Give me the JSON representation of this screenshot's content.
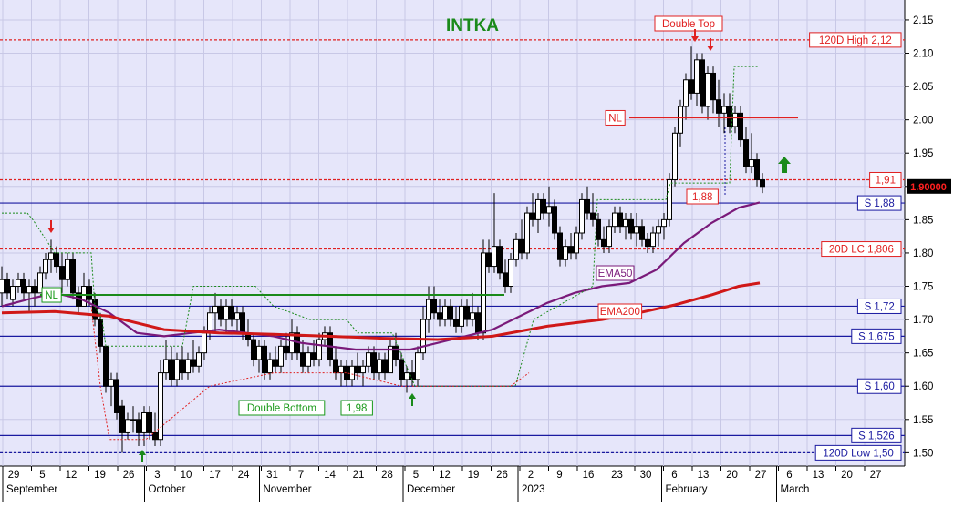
{
  "chart_data": {
    "type": "candlestick",
    "title": "INTKA",
    "currency_note": "",
    "y_axis": {
      "ylim": [
        1.48,
        2.18
      ],
      "ticks": [
        1.5,
        1.55,
        1.6,
        1.65,
        1.7,
        1.75,
        1.8,
        1.85,
        1.9,
        1.95,
        2.0,
        2.05,
        2.1,
        2.15
      ],
      "tick_labels": [
        "1.50",
        "1.55",
        "1.60",
        "1.65",
        "1.70",
        "1.75",
        "1.80",
        "1.85",
        "1.90",
        "1.95",
        "2.00",
        "2.05",
        "2.10",
        "2.15"
      ],
      "current_price": 1.9,
      "current_price_label": "1.90000"
    },
    "x_axis": {
      "day_ticks": [
        "29",
        "5",
        "12",
        "19",
        "26",
        "3",
        "10",
        "17",
        "24",
        "31",
        "7",
        "14",
        "21",
        "28",
        "5",
        "12",
        "19",
        "26",
        "2",
        "9",
        "16",
        "23",
        "30",
        "6",
        "13",
        "20",
        "27",
        "6",
        "13",
        "20",
        "27"
      ],
      "month_labels": [
        "September",
        "October",
        "November",
        "December",
        "2023",
        "February",
        "March"
      ]
    },
    "horizontal_lines": [
      {
        "label": "120D High 2,12",
        "value": 2.12,
        "style": "dashed",
        "color": "#e02020"
      },
      {
        "label": "1,91",
        "value": 1.91,
        "style": "dashed",
        "color": "#e02020"
      },
      {
        "label": "S 1,88",
        "value": 1.875,
        "style": "solid",
        "color": "#1a1aa0"
      },
      {
        "label": "20D LC 1,806",
        "value": 1.806,
        "style": "dashed",
        "color": "#e02020"
      },
      {
        "label": "S 1,72",
        "value": 1.72,
        "style": "solid",
        "color": "#1a1aa0"
      },
      {
        "label": "S 1,675",
        "value": 1.675,
        "style": "solid",
        "color": "#1a1aa0"
      },
      {
        "label": "S 1,60",
        "value": 1.6,
        "style": "solid",
        "color": "#1a1aa0"
      },
      {
        "label": "S 1,526",
        "value": 1.526,
        "style": "solid",
        "color": "#1a1aa0"
      },
      {
        "label": "120D Low 1,50",
        "value": 1.5,
        "style": "dashed",
        "color": "#1a1aa0"
      }
    ],
    "annotations": [
      {
        "label": "Double Top",
        "color": "#e02020"
      },
      {
        "label": "NL",
        "color": "#e02020",
        "value": 2.003
      },
      {
        "label": "NL",
        "color": "#1a9a1a",
        "value": 1.737
      },
      {
        "label": "Double Bottom",
        "color": "#1a9a1a"
      },
      {
        "label": "1,98",
        "color": "#1a9a1a"
      },
      {
        "label": "1,88",
        "color": "#e02020"
      },
      {
        "label": "EMA50",
        "color": "#7a1a7a"
      },
      {
        "label": "EMA200",
        "color": "#e02020"
      }
    ],
    "series": [
      {
        "name": "EMA50",
        "color": "#7a1a7a",
        "x": [
          2,
          30,
          60,
          90,
          120,
          150,
          180,
          210,
          240,
          270,
          300,
          330,
          360,
          390,
          420,
          450,
          480,
          510,
          540,
          570,
          600,
          630,
          660,
          690,
          720,
          750,
          780,
          810,
          833
        ],
        "values": [
          1.72,
          1.73,
          1.74,
          1.73,
          1.71,
          1.68,
          1.675,
          1.68,
          1.685,
          1.68,
          1.675,
          1.665,
          1.66,
          1.655,
          1.655,
          1.655,
          1.665,
          1.675,
          1.685,
          1.705,
          1.725,
          1.74,
          1.75,
          1.755,
          1.775,
          1.815,
          1.845,
          1.868,
          1.876
        ]
      },
      {
        "name": "EMA200",
        "color": "#d01818",
        "x": [
          2,
          60,
          120,
          180,
          240,
          300,
          360,
          420,
          480,
          540,
          600,
          660,
          700,
          740,
          780,
          810,
          833
        ],
        "values": [
          1.71,
          1.712,
          1.705,
          1.685,
          1.68,
          1.678,
          1.675,
          1.672,
          1.67,
          1.675,
          1.69,
          1.7,
          1.71,
          1.722,
          1.737,
          1.75,
          1.755
        ]
      }
    ],
    "candles": [
      [
        2,
        1.74,
        1.78,
        1.72,
        1.76
      ],
      [
        8,
        1.76,
        1.77,
        1.73,
        1.74
      ],
      [
        14,
        1.73,
        1.76,
        1.72,
        1.75
      ],
      [
        20,
        1.75,
        1.77,
        1.74,
        1.76
      ],
      [
        26,
        1.76,
        1.77,
        1.73,
        1.74
      ],
      [
        32,
        1.74,
        1.76,
        1.71,
        1.75
      ],
      [
        38,
        1.75,
        1.76,
        1.72,
        1.74
      ],
      [
        44,
        1.74,
        1.78,
        1.74,
        1.77
      ],
      [
        50,
        1.77,
        1.8,
        1.76,
        1.79
      ],
      [
        56,
        1.79,
        1.82,
        1.77,
        1.8
      ],
      [
        62,
        1.8,
        1.81,
        1.77,
        1.78
      ],
      [
        68,
        1.78,
        1.8,
        1.74,
        1.76
      ],
      [
        74,
        1.76,
        1.8,
        1.75,
        1.79
      ],
      [
        80,
        1.79,
        1.8,
        1.73,
        1.74
      ],
      [
        86,
        1.74,
        1.75,
        1.71,
        1.72
      ],
      [
        92,
        1.72,
        1.77,
        1.72,
        1.75
      ],
      [
        98,
        1.75,
        1.76,
        1.72,
        1.73
      ],
      [
        104,
        1.73,
        1.74,
        1.69,
        1.7
      ],
      [
        110,
        1.7,
        1.71,
        1.65,
        1.66
      ],
      [
        116,
        1.66,
        1.66,
        1.59,
        1.6
      ],
      [
        122,
        1.6,
        1.62,
        1.57,
        1.61
      ],
      [
        128,
        1.61,
        1.62,
        1.55,
        1.56
      ],
      [
        134,
        1.57,
        1.58,
        1.5,
        1.53
      ],
      [
        140,
        1.53,
        1.56,
        1.52,
        1.55
      ],
      [
        146,
        1.55,
        1.57,
        1.53,
        1.55
      ],
      [
        152,
        1.55,
        1.56,
        1.51,
        1.53
      ],
      [
        158,
        1.53,
        1.57,
        1.51,
        1.56
      ],
      [
        164,
        1.56,
        1.57,
        1.52,
        1.53
      ],
      [
        170,
        1.53,
        1.56,
        1.51,
        1.52
      ],
      [
        176,
        1.52,
        1.64,
        1.51,
        1.62
      ],
      [
        182,
        1.62,
        1.67,
        1.61,
        1.64
      ],
      [
        188,
        1.64,
        1.66,
        1.6,
        1.61
      ],
      [
        194,
        1.61,
        1.65,
        1.6,
        1.64
      ],
      [
        200,
        1.64,
        1.66,
        1.61,
        1.62
      ],
      [
        206,
        1.62,
        1.65,
        1.61,
        1.64
      ],
      [
        212,
        1.64,
        1.67,
        1.62,
        1.63
      ],
      [
        218,
        1.63,
        1.66,
        1.62,
        1.65
      ],
      [
        224,
        1.65,
        1.69,
        1.64,
        1.68
      ],
      [
        230,
        1.68,
        1.72,
        1.67,
        1.71
      ],
      [
        236,
        1.71,
        1.74,
        1.68,
        1.72
      ],
      [
        242,
        1.72,
        1.73,
        1.69,
        1.7
      ],
      [
        248,
        1.7,
        1.73,
        1.68,
        1.72
      ],
      [
        254,
        1.72,
        1.73,
        1.69,
        1.7
      ],
      [
        260,
        1.7,
        1.72,
        1.68,
        1.71
      ],
      [
        266,
        1.71,
        1.72,
        1.67,
        1.68
      ],
      [
        272,
        1.68,
        1.7,
        1.66,
        1.67
      ],
      [
        278,
        1.67,
        1.68,
        1.63,
        1.64
      ],
      [
        284,
        1.64,
        1.67,
        1.62,
        1.66
      ],
      [
        290,
        1.66,
        1.67,
        1.61,
        1.62
      ],
      [
        296,
        1.62,
        1.65,
        1.61,
        1.64
      ],
      [
        302,
        1.64,
        1.66,
        1.62,
        1.63
      ],
      [
        308,
        1.63,
        1.67,
        1.62,
        1.66
      ],
      [
        314,
        1.66,
        1.68,
        1.64,
        1.65
      ],
      [
        320,
        1.65,
        1.7,
        1.64,
        1.68
      ],
      [
        326,
        1.68,
        1.69,
        1.64,
        1.65
      ],
      [
        332,
        1.65,
        1.67,
        1.62,
        1.63
      ],
      [
        338,
        1.63,
        1.66,
        1.62,
        1.65
      ],
      [
        344,
        1.65,
        1.67,
        1.63,
        1.64
      ],
      [
        350,
        1.64,
        1.68,
        1.63,
        1.67
      ],
      [
        356,
        1.67,
        1.69,
        1.66,
        1.68
      ],
      [
        362,
        1.68,
        1.69,
        1.63,
        1.64
      ],
      [
        368,
        1.64,
        1.66,
        1.61,
        1.62
      ],
      [
        374,
        1.62,
        1.64,
        1.6,
        1.63
      ],
      [
        380,
        1.63,
        1.64,
        1.6,
        1.61
      ],
      [
        386,
        1.61,
        1.64,
        1.6,
        1.63
      ],
      [
        392,
        1.63,
        1.65,
        1.61,
        1.62
      ],
      [
        398,
        1.62,
        1.64,
        1.6,
        1.63
      ],
      [
        404,
        1.63,
        1.66,
        1.62,
        1.65
      ],
      [
        410,
        1.65,
        1.66,
        1.61,
        1.62
      ],
      [
        416,
        1.62,
        1.65,
        1.61,
        1.64
      ],
      [
        422,
        1.64,
        1.65,
        1.61,
        1.62
      ],
      [
        428,
        1.62,
        1.67,
        1.62,
        1.66
      ],
      [
        434,
        1.66,
        1.68,
        1.63,
        1.64
      ],
      [
        440,
        1.64,
        1.65,
        1.6,
        1.61
      ],
      [
        446,
        1.61,
        1.63,
        1.59,
        1.62
      ],
      [
        452,
        1.62,
        1.64,
        1.6,
        1.61
      ],
      [
        458,
        1.61,
        1.66,
        1.6,
        1.65
      ],
      [
        464,
        1.65,
        1.72,
        1.64,
        1.7
      ],
      [
        470,
        1.7,
        1.75,
        1.68,
        1.73
      ],
      [
        476,
        1.73,
        1.75,
        1.7,
        1.71
      ],
      [
        482,
        1.71,
        1.73,
        1.69,
        1.7
      ],
      [
        488,
        1.7,
        1.73,
        1.69,
        1.72
      ],
      [
        494,
        1.72,
        1.73,
        1.69,
        1.7
      ],
      [
        500,
        1.7,
        1.72,
        1.68,
        1.69
      ],
      [
        506,
        1.69,
        1.73,
        1.68,
        1.72
      ],
      [
        512,
        1.72,
        1.73,
        1.69,
        1.7
      ],
      [
        518,
        1.7,
        1.74,
        1.69,
        1.71
      ],
      [
        524,
        1.71,
        1.72,
        1.67,
        1.68
      ],
      [
        530,
        1.68,
        1.82,
        1.67,
        1.8
      ],
      [
        536,
        1.8,
        1.82,
        1.77,
        1.78
      ],
      [
        542,
        1.78,
        1.89,
        1.77,
        1.81
      ],
      [
        548,
        1.81,
        1.82,
        1.76,
        1.77
      ],
      [
        554,
        1.77,
        1.79,
        1.74,
        1.75
      ],
      [
        560,
        1.75,
        1.8,
        1.74,
        1.79
      ],
      [
        566,
        1.79,
        1.83,
        1.78,
        1.82
      ],
      [
        572,
        1.82,
        1.85,
        1.79,
        1.8
      ],
      [
        578,
        1.8,
        1.87,
        1.79,
        1.86
      ],
      [
        584,
        1.86,
        1.89,
        1.84,
        1.85
      ],
      [
        590,
        1.85,
        1.89,
        1.83,
        1.88
      ],
      [
        596,
        1.88,
        1.89,
        1.85,
        1.86
      ],
      [
        602,
        1.86,
        1.9,
        1.84,
        1.87
      ],
      [
        608,
        1.87,
        1.88,
        1.82,
        1.83
      ],
      [
        614,
        1.83,
        1.84,
        1.78,
        1.79
      ],
      [
        620,
        1.79,
        1.82,
        1.78,
        1.81
      ],
      [
        626,
        1.81,
        1.83,
        1.79,
        1.8
      ],
      [
        632,
        1.8,
        1.84,
        1.79,
        1.83
      ],
      [
        638,
        1.83,
        1.89,
        1.82,
        1.88
      ],
      [
        644,
        1.88,
        1.9,
        1.85,
        1.86
      ],
      [
        650,
        1.86,
        1.89,
        1.84,
        1.85
      ],
      [
        656,
        1.85,
        1.86,
        1.81,
        1.82
      ],
      [
        662,
        1.82,
        1.84,
        1.8,
        1.81
      ],
      [
        668,
        1.81,
        1.85,
        1.8,
        1.84
      ],
      [
        674,
        1.84,
        1.87,
        1.83,
        1.86
      ],
      [
        680,
        1.86,
        1.87,
        1.83,
        1.84
      ],
      [
        686,
        1.84,
        1.86,
        1.82,
        1.85
      ],
      [
        692,
        1.85,
        1.86,
        1.82,
        1.83
      ],
      [
        698,
        1.83,
        1.86,
        1.81,
        1.84
      ],
      [
        704,
        1.84,
        1.85,
        1.81,
        1.82
      ],
      [
        710,
        1.82,
        1.83,
        1.8,
        1.81
      ],
      [
        716,
        1.81,
        1.84,
        1.8,
        1.83
      ],
      [
        722,
        1.83,
        1.85,
        1.81,
        1.84
      ],
      [
        728,
        1.84,
        1.86,
        1.82,
        1.85
      ],
      [
        734,
        1.85,
        1.92,
        1.84,
        1.91
      ],
      [
        740,
        1.91,
        1.99,
        1.9,
        1.98
      ],
      [
        746,
        1.98,
        2.03,
        1.96,
        2.02
      ],
      [
        752,
        2.02,
        2.07,
        2.0,
        2.06
      ],
      [
        758,
        2.06,
        2.11,
        2.03,
        2.04
      ],
      [
        764,
        2.04,
        2.1,
        2.02,
        2.09
      ],
      [
        770,
        2.09,
        2.1,
        2.01,
        2.02
      ],
      [
        776,
        2.02,
        2.08,
        2.0,
        2.07
      ],
      [
        782,
        2.07,
        2.08,
        2.01,
        2.03
      ],
      [
        788,
        2.03,
        2.06,
        1.99,
        2.01
      ],
      [
        794,
        2.01,
        2.04,
        1.98,
        2.02
      ],
      [
        800,
        2.02,
        2.04,
        1.98,
        1.99
      ],
      [
        806,
        1.99,
        2.02,
        1.98,
        2.01
      ],
      [
        812,
        2.01,
        2.02,
        1.96,
        1.97
      ],
      [
        818,
        1.97,
        1.99,
        1.92,
        1.93
      ],
      [
        824,
        1.93,
        1.98,
        1.92,
        1.94
      ],
      [
        830,
        1.94,
        1.95,
        1.9,
        1.91
      ],
      [
        836,
        1.91,
        1.92,
        1.89,
        1.9
      ]
    ]
  }
}
